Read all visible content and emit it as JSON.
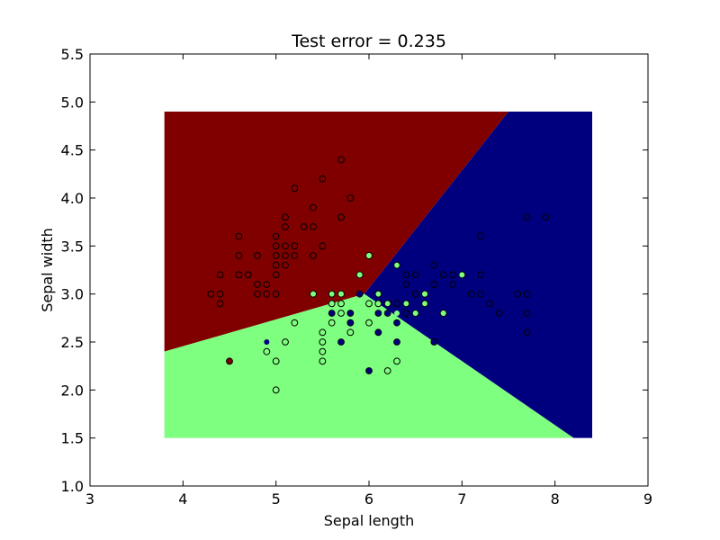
{
  "chart_data": {
    "type": "scatter",
    "title": "Test error = 0.235",
    "xlabel": "Sepal length",
    "ylabel": "Sepal width",
    "xlim": [
      3,
      9
    ],
    "ylim": [
      1.0,
      5.5
    ],
    "x_ticks": [
      "3",
      "4",
      "5",
      "6",
      "7",
      "8",
      "9"
    ],
    "y_ticks": [
      "1.0",
      "1.5",
      "2.0",
      "2.5",
      "3.0",
      "3.5",
      "4.0",
      "4.5",
      "5.0",
      "5.5"
    ],
    "grid": false,
    "legend": "none",
    "decision_regions": {
      "x_range": [
        3.8,
        8.4
      ],
      "y_range": [
        1.5,
        4.9
      ],
      "colors": {
        "class_0": "#800000",
        "class_1": "#7fff7f",
        "class_2": "#00007f"
      },
      "boundary_0_1": {
        "at_x": [
          3.8,
          5.95
        ],
        "y": [
          2.4,
          3.0
        ]
      },
      "boundary_0_2": {
        "at_x": [
          5.95,
          7.5
        ],
        "y": [
          3.0,
          4.9
        ]
      },
      "boundary_1_2": {
        "at_x": [
          5.95,
          8.2
        ],
        "y": [
          3.0,
          1.5
        ]
      }
    },
    "series": [
      {
        "class": "class_0",
        "fill": "#800000",
        "train": true,
        "x": [
          4.3,
          4.4,
          4.4,
          4.4,
          4.5,
          4.6,
          4.6,
          4.6,
          4.7,
          4.7,
          4.8,
          4.8,
          4.8,
          4.9,
          4.9,
          5.0,
          5.0,
          5.0,
          5.0,
          5.0,
          5.0,
          5.1,
          5.1,
          5.1,
          5.1,
          5.1,
          5.2,
          5.2,
          5.2,
          5.3,
          5.4,
          5.4,
          5.4,
          5.4,
          5.5,
          5.5,
          5.7,
          5.7,
          5.7,
          5.8
        ],
        "y": [
          3.0,
          3.2,
          3.0,
          2.9,
          2.3,
          3.6,
          3.4,
          3.2,
          3.2,
          3.2,
          3.4,
          3.1,
          3.0,
          3.1,
          3.0,
          3.6,
          3.5,
          3.4,
          3.3,
          3.2,
          3.0,
          3.8,
          3.7,
          3.5,
          3.4,
          3.3,
          4.1,
          3.5,
          3.4,
          3.7,
          3.9,
          3.7,
          3.4,
          3.0,
          4.2,
          3.5,
          4.4,
          3.8,
          3.8,
          4.0
        ]
      },
      {
        "class": "class_1",
        "fill": "#7fff7f",
        "train": true,
        "x": [
          4.9,
          5.0,
          5.0,
          5.1,
          5.2,
          5.5,
          5.5,
          5.5,
          5.5,
          5.6,
          5.6,
          5.6,
          5.7,
          5.7,
          5.7,
          5.8,
          5.8,
          5.9,
          5.9,
          6.0,
          6.0,
          6.0,
          6.1,
          6.1,
          6.1,
          6.2,
          6.2,
          6.3,
          6.3,
          6.4,
          6.6,
          6.6,
          6.7,
          6.8
        ],
        "y": [
          2.4,
          2.3,
          2.0,
          2.5,
          2.7,
          2.6,
          2.5,
          2.4,
          2.3,
          3.0,
          2.9,
          2.7,
          3.0,
          2.9,
          2.8,
          2.7,
          2.6,
          3.0,
          3.2,
          3.4,
          2.9,
          2.7,
          3.0,
          2.9,
          2.8,
          2.9,
          2.2,
          3.3,
          2.3,
          2.9,
          3.0,
          2.9,
          3.1,
          2.8
        ]
      },
      {
        "class": "class_2",
        "fill": "#00007f",
        "train": true,
        "x": [
          5.6,
          5.7,
          5.8,
          5.8,
          6.0,
          6.1,
          6.2,
          6.3,
          6.3,
          6.3,
          6.4,
          6.4,
          6.4,
          6.5,
          6.5,
          6.5,
          6.7,
          6.7,
          6.7,
          6.8,
          6.9,
          6.9,
          7.0,
          7.1,
          7.2,
          7.2,
          7.2,
          7.3,
          7.4,
          7.6,
          7.7,
          7.7,
          7.7,
          7.7,
          7.9
        ],
        "y": [
          2.8,
          2.5,
          2.8,
          2.7,
          2.2,
          2.6,
          2.8,
          2.7,
          2.5,
          2.9,
          3.2,
          3.1,
          2.8,
          3.2,
          3.0,
          2.8,
          3.3,
          3.1,
          2.5,
          3.2,
          3.1,
          3.2,
          3.2,
          3.0,
          3.6,
          3.2,
          3.0,
          2.9,
          2.8,
          3.0,
          3.8,
          3.0,
          2.8,
          2.6,
          3.8
        ]
      },
      {
        "class": "class_1",
        "fill": "#7fff7f",
        "train": false,
        "x": [
          5.4,
          5.7,
          5.9,
          6.0,
          6.2,
          6.3,
          6.5,
          6.6,
          6.8,
          7.0
        ],
        "y": [
          3.0,
          3.0,
          3.2,
          3.4,
          2.8,
          2.8,
          2.8,
          3.0,
          2.8,
          3.2
        ]
      },
      {
        "class": "class_2",
        "fill": "#00007f",
        "train": false,
        "x": [
          4.9,
          5.6,
          5.7,
          5.8,
          5.9,
          6.1,
          6.3,
          6.3,
          6.1,
          6.2
        ],
        "y": [
          2.5,
          2.8,
          2.5,
          2.7,
          3.0,
          2.6,
          2.7,
          2.5,
          2.8,
          2.8
        ]
      }
    ]
  }
}
